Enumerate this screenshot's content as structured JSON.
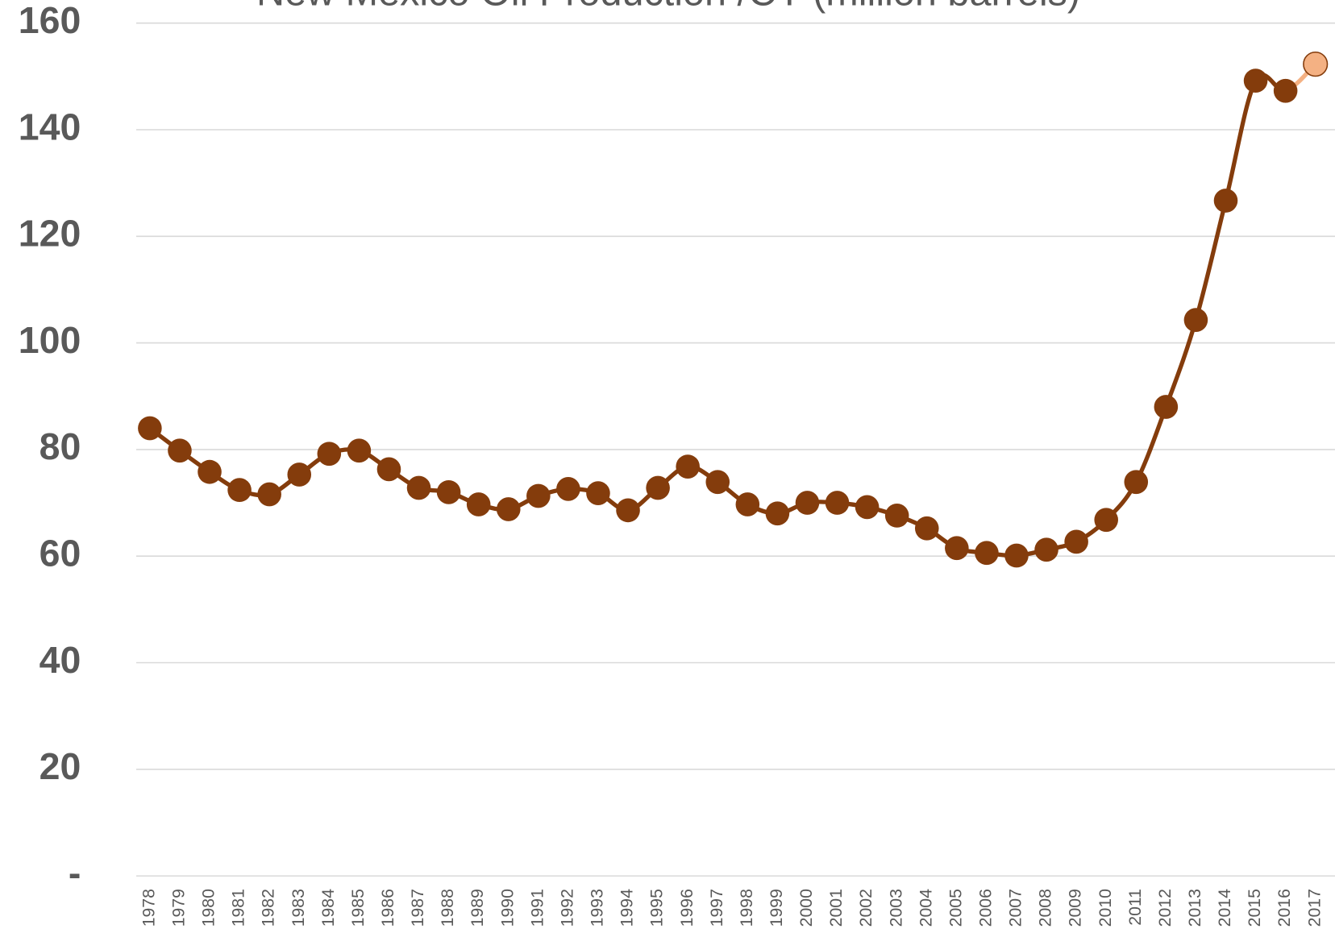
{
  "chart_data": {
    "type": "line",
    "title": "New Mexico Oil Production /CY (million barrels)",
    "categories": [
      "1978",
      "1979",
      "1980",
      "1981",
      "1982",
      "1983",
      "1984",
      "1985",
      "1986",
      "1987",
      "1988",
      "1989",
      "1990",
      "1991",
      "1992",
      "1993",
      "1994",
      "1995",
      "1996",
      "1997",
      "1998",
      "1999",
      "2000",
      "2001",
      "2002",
      "2003",
      "2004",
      "2005",
      "2006",
      "2007",
      "2008",
      "2009",
      "2010",
      "2011",
      "2012",
      "2013",
      "2014",
      "2015",
      "2016",
      "2017"
    ],
    "values": [
      84.0,
      79.8,
      75.8,
      72.4,
      71.6,
      75.3,
      79.2,
      79.8,
      76.3,
      72.8,
      72.0,
      69.7,
      68.8,
      71.3,
      72.6,
      71.8,
      68.6,
      72.8,
      76.8,
      73.9,
      69.7,
      68.0,
      70.0,
      70.0,
      69.2,
      67.6,
      65.2,
      61.5,
      60.6,
      60.1,
      61.2,
      62.7,
      66.8,
      73.9,
      88.0,
      104.3,
      126.7,
      149.2,
      147.3,
      152.3
    ],
    "color": "#843c0c",
    "last_point_color": "#f4b183",
    "smooth": true,
    "ylim": [
      0,
      160
    ],
    "yticks": [
      {
        "value": 0,
        "label": "-"
      },
      20,
      40,
      60,
      80,
      100,
      120,
      140,
      160
    ],
    "grid": true
  }
}
